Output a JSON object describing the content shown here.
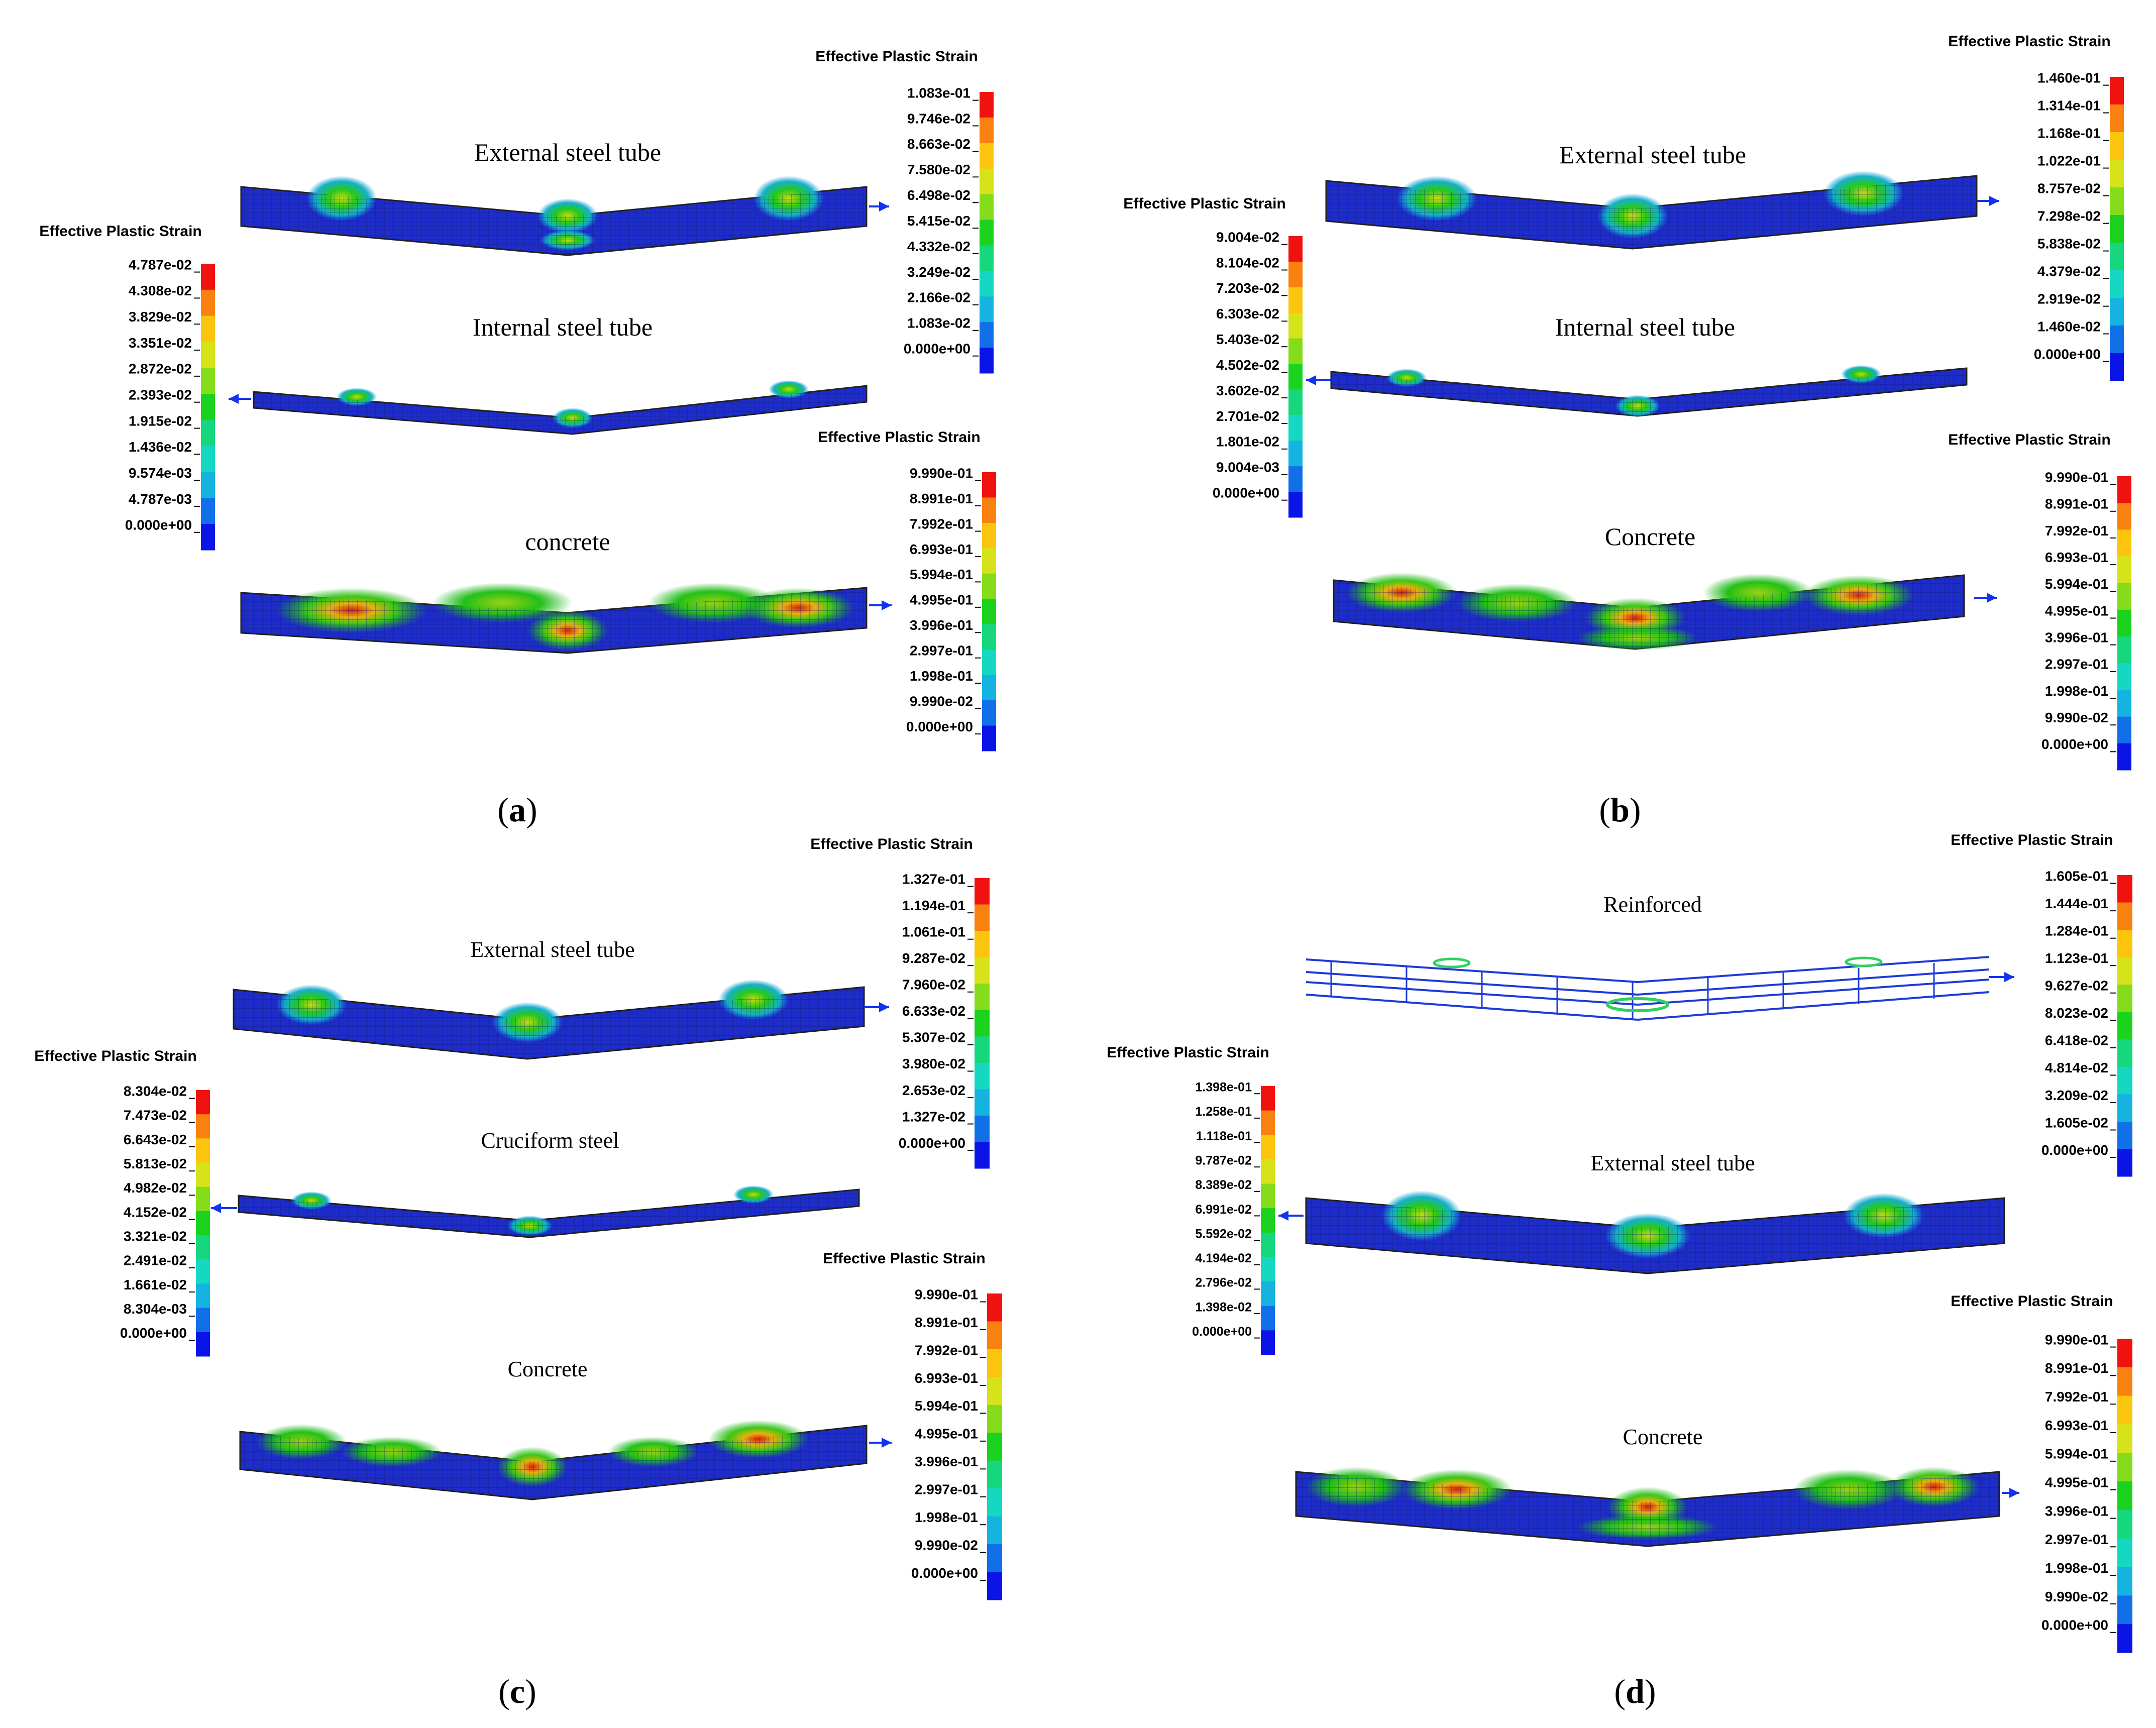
{
  "legend_title": "Effective Plastic Strain",
  "colormap": [
    "#0a14e6",
    "#1170e8",
    "#15b4e0",
    "#15d8c2",
    "#16d67e",
    "#1bd21e",
    "#84dc1a",
    "#d6e21a",
    "#fbc40d",
    "#f98110",
    "#f0120f"
  ],
  "body_color": "#1e2dc8",
  "arrow_color": "#1133ee",
  "panels": [
    {
      "id": "a",
      "caption": "a",
      "parts": [
        {
          "label": "External steel tube",
          "legend": [
            "1.083e-01",
            "9.746e-02",
            "8.663e-02",
            "7.580e-02",
            "6.498e-02",
            "5.415e-02",
            "4.332e-02",
            "3.249e-02",
            "2.166e-02",
            "1.083e-02",
            "0.000e+00"
          ]
        },
        {
          "label": "Internal steel tube",
          "legend": [
            "4.787e-02",
            "4.308e-02",
            "3.829e-02",
            "3.351e-02",
            "2.872e-02",
            "2.393e-02",
            "1.915e-02",
            "1.436e-02",
            "9.574e-03",
            "4.787e-03",
            "0.000e+00"
          ]
        },
        {
          "label": "concrete",
          "legend": [
            "9.990e-01",
            "8.991e-01",
            "7.992e-01",
            "6.993e-01",
            "5.994e-01",
            "4.995e-01",
            "3.996e-01",
            "2.997e-01",
            "1.998e-01",
            "9.990e-02",
            "0.000e+00"
          ]
        }
      ]
    },
    {
      "id": "b",
      "caption": "b",
      "parts": [
        {
          "label": "External steel tube",
          "legend": [
            "1.460e-01",
            "1.314e-01",
            "1.168e-01",
            "1.022e-01",
            "8.757e-02",
            "7.298e-02",
            "5.838e-02",
            "4.379e-02",
            "2.919e-02",
            "1.460e-02",
            "0.000e+00"
          ]
        },
        {
          "label": "Internal steel tube",
          "legend": [
            "9.004e-02",
            "8.104e-02",
            "7.203e-02",
            "6.303e-02",
            "5.403e-02",
            "4.502e-02",
            "3.602e-02",
            "2.701e-02",
            "1.801e-02",
            "9.004e-03",
            "0.000e+00"
          ]
        },
        {
          "label": "Concrete",
          "legend": [
            "9.990e-01",
            "8.991e-01",
            "7.992e-01",
            "6.993e-01",
            "5.994e-01",
            "4.995e-01",
            "3.996e-01",
            "2.997e-01",
            "1.998e-01",
            "9.990e-02",
            "0.000e+00"
          ]
        }
      ]
    },
    {
      "id": "c",
      "caption": "c",
      "parts": [
        {
          "label": "External steel tube",
          "legend": [
            "1.327e-01",
            "1.194e-01",
            "1.061e-01",
            "9.287e-02",
            "7.960e-02",
            "6.633e-02",
            "5.307e-02",
            "3.980e-02",
            "2.653e-02",
            "1.327e-02",
            "0.000e+00"
          ]
        },
        {
          "label": "Cruciform steel",
          "legend": [
            "8.304e-02",
            "7.473e-02",
            "6.643e-02",
            "5.813e-02",
            "4.982e-02",
            "4.152e-02",
            "3.321e-02",
            "2.491e-02",
            "1.661e-02",
            "8.304e-03",
            "0.000e+00"
          ]
        },
        {
          "label": "Concrete",
          "legend": [
            "9.990e-01",
            "8.991e-01",
            "7.992e-01",
            "6.993e-01",
            "5.994e-01",
            "4.995e-01",
            "3.996e-01",
            "2.997e-01",
            "1.998e-01",
            "9.990e-02",
            "0.000e+00"
          ]
        }
      ]
    },
    {
      "id": "d",
      "caption": "d",
      "parts": [
        {
          "label": "Reinforced",
          "legend": [
            "1.605e-01",
            "1.444e-01",
            "1.284e-01",
            "1.123e-01",
            "9.627e-02",
            "8.023e-02",
            "6.418e-02",
            "4.814e-02",
            "3.209e-02",
            "1.605e-02",
            "0.000e+00"
          ]
        },
        {
          "label": "External steel tube",
          "legend": [
            "1.398e-01",
            "1.258e-01",
            "1.118e-01",
            "9.787e-02",
            "8.389e-02",
            "6.991e-02",
            "5.592e-02",
            "4.194e-02",
            "2.796e-02",
            "1.398e-02",
            "0.000e+00"
          ]
        },
        {
          "label": "Concrete",
          "legend": [
            "9.990e-01",
            "8.991e-01",
            "7.992e-01",
            "6.993e-01",
            "5.994e-01",
            "4.995e-01",
            "3.996e-01",
            "2.997e-01",
            "1.998e-01",
            "9.990e-02",
            "0.000e+00"
          ]
        }
      ]
    }
  ]
}
